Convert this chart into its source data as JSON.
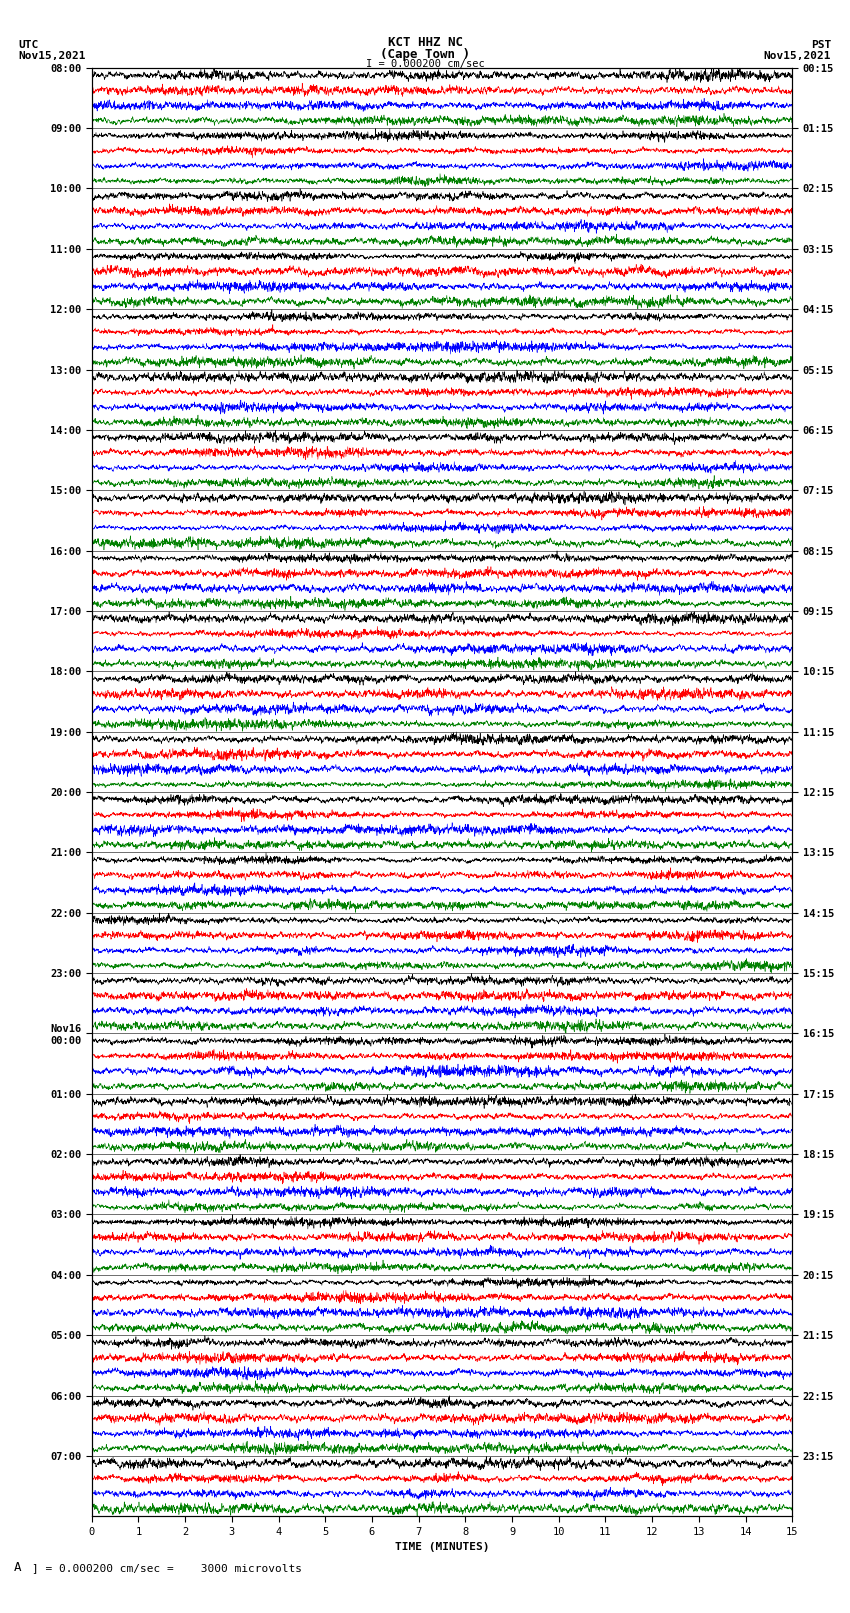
{
  "title_line1": "KCT HHZ NC",
  "title_line2": "(Cape Town )",
  "title_line3": "I = 0.000200 cm/sec",
  "left_label_line1": "UTC",
  "left_label_line2": "Nov15,2021",
  "right_label_line1": "PST",
  "right_label_line2": "Nov15,2021",
  "xlabel": "TIME (MINUTES)",
  "scale_label": "= 0.000200 cm/sec =    3000 microvolts",
  "scale_marker": "A",
  "left_times": [
    "08:00",
    "09:00",
    "10:00",
    "11:00",
    "12:00",
    "13:00",
    "14:00",
    "15:00",
    "16:00",
    "17:00",
    "18:00",
    "19:00",
    "20:00",
    "21:00",
    "22:00",
    "23:00",
    "Nov16\n00:00",
    "01:00",
    "02:00",
    "03:00",
    "04:00",
    "05:00",
    "06:00",
    "07:00"
  ],
  "right_times": [
    "00:15",
    "01:15",
    "02:15",
    "03:15",
    "04:15",
    "05:15",
    "06:15",
    "07:15",
    "08:15",
    "09:15",
    "10:15",
    "11:15",
    "12:15",
    "13:15",
    "14:15",
    "15:15",
    "16:15",
    "17:15",
    "18:15",
    "19:15",
    "20:15",
    "21:15",
    "22:15",
    "23:15"
  ],
  "n_hours": 24,
  "traces_per_hour": 4,
  "n_samples": 3000,
  "xmin": 0,
  "xmax": 15,
  "colors": [
    "#000000",
    "#ff0000",
    "#0000ff",
    "#008000"
  ],
  "bg_color": "#ffffff",
  "amplitude": 0.48,
  "xticks": [
    0,
    1,
    2,
    3,
    4,
    5,
    6,
    7,
    8,
    9,
    10,
    11,
    12,
    13,
    14,
    15
  ],
  "grid_color": "#000000",
  "title_fontsize": 9,
  "label_fontsize": 8,
  "tick_fontsize": 7.5,
  "axis_label_fontsize": 8,
  "linewidth": 0.4
}
